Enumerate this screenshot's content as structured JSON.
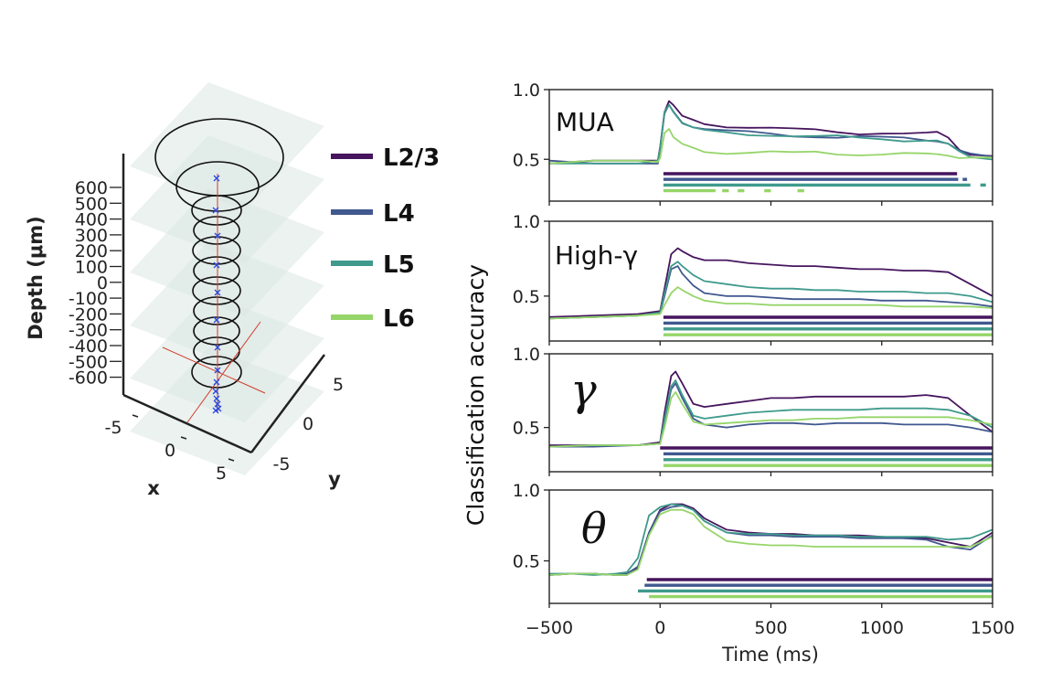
{
  "colors": {
    "L2/3": "#46155e",
    "L4": "#41588f",
    "L5": "#3f9a8c",
    "L6": "#96d56a"
  },
  "legend": {
    "items": [
      {
        "label": "L2/3",
        "color": "#46155e"
      },
      {
        "label": "L4",
        "color": "#41588f"
      },
      {
        "label": "L5",
        "color": "#3f9a8c"
      },
      {
        "label": "L6",
        "color": "#96d56a"
      }
    ],
    "placement": "between-panels"
  },
  "three_d": {
    "zlabel": "Depth (μm)",
    "zticks": [
      "600",
      "500",
      "400",
      "300",
      "200",
      "100",
      "0",
      "-100",
      "-200",
      "-300",
      "-400",
      "-500",
      "-600"
    ],
    "xlabel": "x",
    "xticks": [
      "-5",
      "0",
      "5"
    ],
    "ylabel": "y",
    "yticks": [
      "-5",
      "0",
      "5"
    ]
  },
  "chart_data": [
    {
      "type": "line",
      "panel_label": "MUA",
      "ylim": [
        0.2,
        1.0
      ],
      "yticks": [
        "1.0",
        "0.5"
      ],
      "xlim": [
        -500,
        1500
      ],
      "x": [
        -500,
        -300,
        -100,
        -10,
        0,
        20,
        40,
        60,
        100,
        150,
        200,
        300,
        400,
        500,
        600,
        700,
        800,
        900,
        1000,
        1100,
        1200,
        1250,
        1300,
        1350,
        1400,
        1500
      ],
      "series": [
        {
          "name": "L2/3",
          "values": [
            0.47,
            0.48,
            0.48,
            0.49,
            0.6,
            0.85,
            0.92,
            0.88,
            0.8,
            0.78,
            0.76,
            0.74,
            0.73,
            0.72,
            0.71,
            0.71,
            0.7,
            0.69,
            0.69,
            0.68,
            0.68,
            0.69,
            0.66,
            0.58,
            0.54,
            0.52
          ]
        },
        {
          "name": "L4",
          "values": [
            0.48,
            0.47,
            0.48,
            0.48,
            0.58,
            0.82,
            0.88,
            0.84,
            0.77,
            0.74,
            0.72,
            0.7,
            0.69,
            0.68,
            0.67,
            0.67,
            0.66,
            0.66,
            0.65,
            0.65,
            0.64,
            0.64,
            0.62,
            0.56,
            0.53,
            0.51
          ]
        },
        {
          "name": "L5",
          "values": [
            0.48,
            0.48,
            0.47,
            0.48,
            0.57,
            0.84,
            0.9,
            0.85,
            0.76,
            0.72,
            0.7,
            0.69,
            0.68,
            0.68,
            0.67,
            0.66,
            0.66,
            0.65,
            0.65,
            0.64,
            0.64,
            0.63,
            0.6,
            0.55,
            0.52,
            0.51
          ]
        },
        {
          "name": "L6",
          "values": [
            0.47,
            0.48,
            0.48,
            0.48,
            0.52,
            0.7,
            0.72,
            0.65,
            0.6,
            0.58,
            0.56,
            0.55,
            0.55,
            0.55,
            0.54,
            0.55,
            0.54,
            0.54,
            0.54,
            0.54,
            0.53,
            0.53,
            0.53,
            0.52,
            0.52,
            0.51
          ]
        }
      ],
      "significance": [
        {
          "name": "L2/3",
          "segments": [
            [
              15,
              1340
            ]
          ]
        },
        {
          "name": "L4",
          "segments": [
            [
              15,
              1345
            ],
            [
              1365,
              1385
            ]
          ]
        },
        {
          "name": "L5",
          "segments": [
            [
              15,
              1400
            ],
            [
              1445,
              1470
            ]
          ]
        },
        {
          "name": "L6",
          "segments": [
            [
              15,
              250
            ],
            [
              280,
              310
            ],
            [
              350,
              380
            ],
            [
              470,
              500
            ],
            [
              620,
              650
            ]
          ]
        }
      ]
    },
    {
      "type": "line",
      "panel_label": "High-γ",
      "ylim": [
        0.2,
        1.0
      ],
      "yticks": [
        "1.0",
        "0.5"
      ],
      "xlim": [
        -500,
        1500
      ],
      "x": [
        -500,
        -300,
        -100,
        0,
        20,
        50,
        80,
        100,
        150,
        200,
        300,
        400,
        500,
        600,
        700,
        800,
        900,
        1000,
        1100,
        1200,
        1300,
        1400,
        1500
      ],
      "series": [
        {
          "name": "L2/3",
          "values": [
            0.36,
            0.37,
            0.38,
            0.4,
            0.55,
            0.78,
            0.82,
            0.8,
            0.76,
            0.74,
            0.74,
            0.72,
            0.71,
            0.7,
            0.7,
            0.69,
            0.68,
            0.68,
            0.67,
            0.67,
            0.66,
            0.58,
            0.5
          ]
        },
        {
          "name": "L4",
          "values": [
            0.35,
            0.36,
            0.37,
            0.39,
            0.5,
            0.68,
            0.7,
            0.65,
            0.57,
            0.52,
            0.5,
            0.5,
            0.49,
            0.48,
            0.48,
            0.48,
            0.48,
            0.47,
            0.47,
            0.47,
            0.46,
            0.45,
            0.43
          ]
        },
        {
          "name": "L5",
          "values": [
            0.35,
            0.36,
            0.37,
            0.39,
            0.52,
            0.7,
            0.73,
            0.7,
            0.64,
            0.6,
            0.58,
            0.56,
            0.55,
            0.55,
            0.54,
            0.54,
            0.53,
            0.53,
            0.53,
            0.52,
            0.52,
            0.5,
            0.46
          ]
        },
        {
          "name": "L6",
          "values": [
            0.35,
            0.36,
            0.37,
            0.38,
            0.44,
            0.52,
            0.56,
            0.54,
            0.5,
            0.47,
            0.45,
            0.45,
            0.44,
            0.44,
            0.44,
            0.44,
            0.44,
            0.44,
            0.43,
            0.43,
            0.43,
            0.43,
            0.42
          ]
        }
      ],
      "significance": [
        {
          "name": "L2/3",
          "segments": [
            [
              15,
              1500
            ]
          ]
        },
        {
          "name": "L4",
          "segments": [
            [
              15,
              1500
            ]
          ]
        },
        {
          "name": "L5",
          "segments": [
            [
              15,
              1500
            ]
          ]
        },
        {
          "name": "L6",
          "segments": [
            [
              15,
              1500
            ]
          ]
        }
      ]
    },
    {
      "type": "line",
      "panel_label": "γ",
      "ylim": [
        0.2,
        1.0
      ],
      "yticks": [
        "1.0",
        "0.5"
      ],
      "xlim": [
        -500,
        1500
      ],
      "x": [
        -500,
        -300,
        -100,
        0,
        20,
        50,
        70,
        100,
        150,
        200,
        300,
        400,
        500,
        600,
        700,
        800,
        900,
        1000,
        1100,
        1200,
        1300,
        1400,
        1500
      ],
      "series": [
        {
          "name": "L2/3",
          "values": [
            0.38,
            0.38,
            0.38,
            0.4,
            0.6,
            0.85,
            0.88,
            0.8,
            0.66,
            0.64,
            0.66,
            0.68,
            0.7,
            0.7,
            0.71,
            0.71,
            0.71,
            0.71,
            0.71,
            0.72,
            0.7,
            0.58,
            0.47
          ]
        },
        {
          "name": "L4",
          "values": [
            0.37,
            0.37,
            0.38,
            0.39,
            0.55,
            0.76,
            0.8,
            0.7,
            0.56,
            0.52,
            0.5,
            0.52,
            0.53,
            0.53,
            0.52,
            0.53,
            0.53,
            0.53,
            0.52,
            0.52,
            0.52,
            0.5,
            0.47
          ]
        },
        {
          "name": "L5",
          "values": [
            0.37,
            0.38,
            0.38,
            0.39,
            0.56,
            0.78,
            0.82,
            0.72,
            0.58,
            0.56,
            0.58,
            0.6,
            0.61,
            0.62,
            0.62,
            0.62,
            0.62,
            0.63,
            0.63,
            0.63,
            0.62,
            0.58,
            0.5
          ]
        },
        {
          "name": "L6",
          "values": [
            0.37,
            0.38,
            0.38,
            0.39,
            0.5,
            0.7,
            0.74,
            0.66,
            0.54,
            0.52,
            0.53,
            0.54,
            0.55,
            0.55,
            0.56,
            0.56,
            0.57,
            0.57,
            0.57,
            0.57,
            0.57,
            0.55,
            0.52
          ]
        }
      ],
      "significance": [
        {
          "name": "L2/3",
          "segments": [
            [
              0,
              1500
            ]
          ]
        },
        {
          "name": "L4",
          "segments": [
            [
              15,
              1500
            ]
          ]
        },
        {
          "name": "L5",
          "segments": [
            [
              15,
              1500
            ]
          ]
        },
        {
          "name": "L6",
          "segments": [
            [
              15,
              1500
            ]
          ]
        }
      ]
    },
    {
      "type": "line",
      "panel_label": "θ",
      "ylim": [
        0.2,
        1.0
      ],
      "yticks": [
        "1.0",
        "0.5"
      ],
      "xlim": [
        -500,
        1500
      ],
      "x": [
        -500,
        -400,
        -300,
        -200,
        -150,
        -100,
        -50,
        0,
        50,
        100,
        150,
        200,
        300,
        400,
        500,
        600,
        700,
        800,
        900,
        1000,
        1100,
        1200,
        1300,
        1400,
        1500
      ],
      "series": [
        {
          "name": "L2/3",
          "values": [
            0.4,
            0.41,
            0.41,
            0.4,
            0.4,
            0.45,
            0.7,
            0.86,
            0.9,
            0.9,
            0.87,
            0.8,
            0.72,
            0.7,
            0.69,
            0.69,
            0.68,
            0.68,
            0.68,
            0.67,
            0.66,
            0.66,
            0.63,
            0.6,
            0.7
          ]
        },
        {
          "name": "L4",
          "values": [
            0.4,
            0.41,
            0.41,
            0.4,
            0.41,
            0.46,
            0.7,
            0.85,
            0.88,
            0.89,
            0.86,
            0.78,
            0.7,
            0.68,
            0.68,
            0.67,
            0.67,
            0.67,
            0.66,
            0.66,
            0.66,
            0.65,
            0.6,
            0.58,
            0.68
          ]
        },
        {
          "name": "L5",
          "values": [
            0.41,
            0.41,
            0.4,
            0.41,
            0.42,
            0.52,
            0.82,
            0.88,
            0.9,
            0.89,
            0.86,
            0.78,
            0.7,
            0.69,
            0.69,
            0.68,
            0.68,
            0.68,
            0.67,
            0.67,
            0.67,
            0.67,
            0.65,
            0.66,
            0.72
          ]
        },
        {
          "name": "L6",
          "values": [
            0.4,
            0.41,
            0.41,
            0.4,
            0.4,
            0.44,
            0.68,
            0.83,
            0.86,
            0.86,
            0.83,
            0.74,
            0.64,
            0.62,
            0.61,
            0.61,
            0.6,
            0.6,
            0.6,
            0.6,
            0.6,
            0.6,
            0.6,
            0.6,
            0.67
          ]
        }
      ],
      "significance": [
        {
          "name": "L2/3",
          "segments": [
            [
              -60,
              1500
            ]
          ]
        },
        {
          "name": "L4",
          "segments": [
            [
              -70,
              1500
            ]
          ]
        },
        {
          "name": "L5",
          "segments": [
            [
              -100,
              1500
            ]
          ]
        },
        {
          "name": "L6",
          "segments": [
            [
              -50,
              1500
            ]
          ]
        }
      ]
    }
  ],
  "shared_axes": {
    "xticks": [
      "−500",
      "0",
      "500",
      "1000",
      "1500"
    ],
    "xtick_values": [
      -500,
      0,
      500,
      1000,
      1500
    ],
    "xlabel": "Time (ms)",
    "ylabel": "Classification accuracy"
  }
}
